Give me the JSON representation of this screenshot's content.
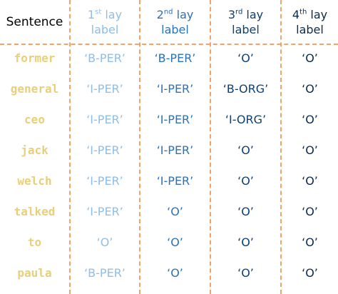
{
  "header": {
    "sentence": "Sentence",
    "layers": [
      {
        "num": "1",
        "sup": "st",
        "lay": " lay",
        "label": "label",
        "color": "#8fbee6"
      },
      {
        "num": "2",
        "sup": "nd",
        "lay": " lay",
        "label": "label",
        "color": "#2b72b8"
      },
      {
        "num": "3",
        "sup": "rd",
        "lay": " lay",
        "label": "label",
        "color": "#0d3f73"
      },
      {
        "num": "4",
        "sup": "th",
        "lay": " lay",
        "label": "label",
        "color": "#0a2a4f"
      }
    ]
  },
  "rows": [
    {
      "word": "former",
      "labels": [
        "‘B-PER’",
        "‘B-PER’",
        "‘O’",
        "‘O’"
      ]
    },
    {
      "word": "general",
      "labels": [
        "‘I-PER’",
        "‘I-PER’",
        "‘B-ORG’",
        "‘O’"
      ]
    },
    {
      "word": "ceo",
      "labels": [
        "‘I-PER’",
        "‘I-PER’",
        "‘I-ORG’",
        "‘O’"
      ]
    },
    {
      "word": "jack",
      "labels": [
        "‘I-PER’",
        "‘I-PER’",
        "‘O’",
        "‘O’"
      ]
    },
    {
      "word": "welch",
      "labels": [
        "‘I-PER’",
        "‘I-PER’",
        "‘O’",
        "‘O’"
      ]
    },
    {
      "word": "talked",
      "labels": [
        "‘I-PER’",
        "‘O’",
        "‘O’",
        "‘O’"
      ]
    },
    {
      "word": "to",
      "labels": [
        "‘O’",
        "‘O’",
        "‘O’",
        "‘O’"
      ]
    },
    {
      "word": "paula",
      "labels": [
        "‘B-PER’",
        "‘O’",
        "‘O’",
        "‘O’"
      ]
    }
  ],
  "colors": {
    "divider": "#f4a16a",
    "word": "#e8cf7a"
  }
}
